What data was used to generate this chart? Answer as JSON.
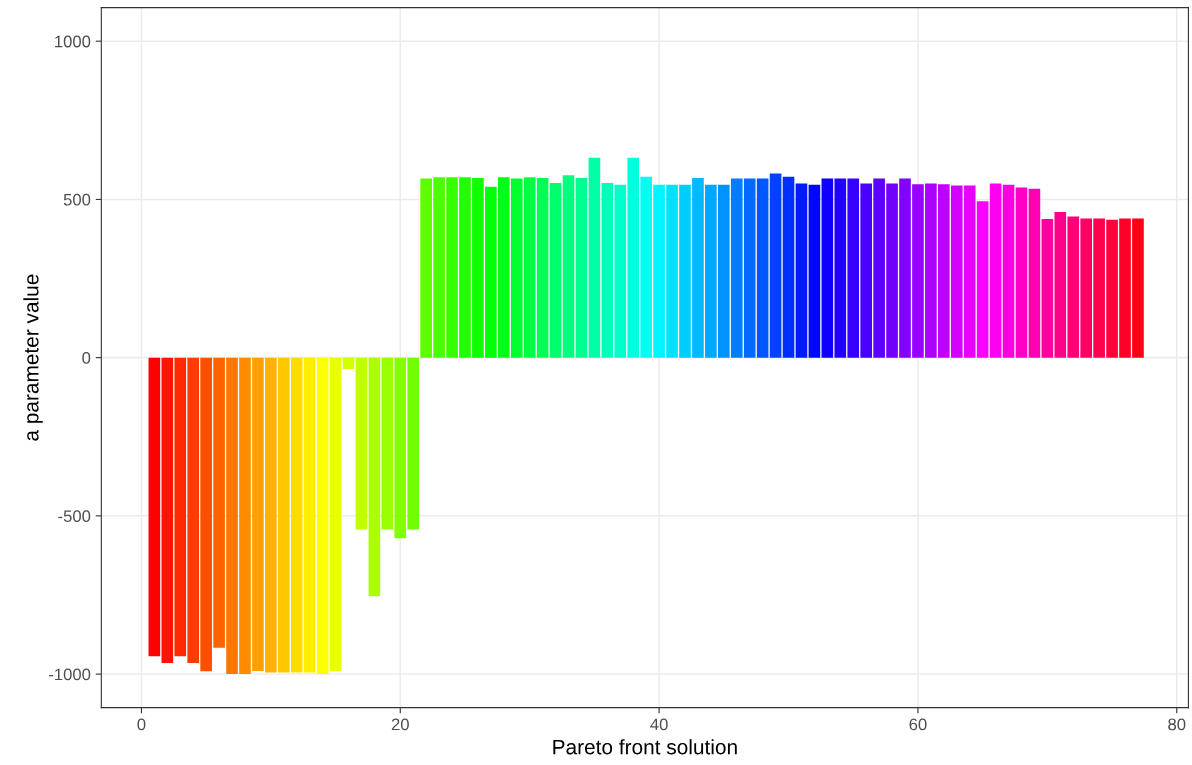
{
  "chart_data": {
    "type": "bar",
    "xlabel": "Pareto front solution",
    "ylabel": "a parameter value",
    "x": [
      1,
      2,
      3,
      4,
      5,
      6,
      7,
      8,
      9,
      10,
      11,
      12,
      13,
      14,
      15,
      16,
      17,
      18,
      19,
      20,
      21,
      22,
      23,
      24,
      25,
      26,
      27,
      28,
      29,
      30,
      31,
      32,
      33,
      34,
      35,
      36,
      37,
      38,
      39,
      40,
      41,
      42,
      43,
      44,
      45,
      46,
      47,
      48,
      49,
      50,
      51,
      52,
      53,
      54,
      55,
      56,
      57,
      58,
      59,
      60,
      61,
      62,
      63,
      64,
      65,
      66,
      67,
      68,
      69,
      70,
      71,
      72,
      73,
      74,
      75,
      76,
      77
    ],
    "values": [
      -944,
      -965,
      -944,
      -965,
      -991,
      -917,
      -1000,
      -1000,
      -990,
      -995,
      -995,
      -995,
      -995,
      -1000,
      -990,
      -36,
      -543,
      -754,
      -543,
      -571,
      -543,
      566,
      570,
      570,
      570,
      568,
      540,
      570,
      566,
      570,
      568,
      552,
      576,
      568,
      632,
      552,
      546,
      632,
      572,
      546,
      546,
      546,
      568,
      546,
      546,
      566,
      566,
      566,
      582,
      572,
      550,
      546,
      566,
      566,
      566,
      550,
      566,
      550,
      566,
      548,
      550,
      548,
      544,
      544,
      494,
      550,
      546,
      538,
      534,
      438,
      460,
      446,
      440,
      440,
      436,
      440,
      440
    ],
    "colors": [
      "#FF0000",
      "#FF1400",
      "#FF2800",
      "#FF3C00",
      "#FF4F00",
      "#FF6300",
      "#FF7700",
      "#FF8B00",
      "#FF9F00",
      "#FFB300",
      "#FFC700",
      "#FFDB00",
      "#FFEE00",
      "#FCFF00",
      "#E8FF00",
      "#D4FF00",
      "#C0FF00",
      "#ACFF00",
      "#98FF00",
      "#84FF00",
      "#71FF00",
      "#5DFF00",
      "#49FF00",
      "#35FF00",
      "#21FF00",
      "#0DFF00",
      "#00FF07",
      "#00FF1A",
      "#00FF2E",
      "#00FF42",
      "#00FF56",
      "#00FF6A",
      "#00FF7E",
      "#00FF92",
      "#00FFA6",
      "#00FFB9",
      "#00FFCD",
      "#00FFE1",
      "#00FFF5",
      "#00F5FF",
      "#00E1FF",
      "#00CDFF",
      "#00B9FF",
      "#00A6FF",
      "#0092FF",
      "#007EFF",
      "#006AFF",
      "#0056FF",
      "#0042FF",
      "#002EFF",
      "#001AFF",
      "#0007FF",
      "#0D00FF",
      "#2100FF",
      "#3500FF",
      "#4900FF",
      "#5D00FF",
      "#7100FF",
      "#8400FF",
      "#9800FF",
      "#AC00FF",
      "#C000FF",
      "#D400FF",
      "#E800FF",
      "#FC00FF",
      "#FF00EE",
      "#FF00DB",
      "#FF00C7",
      "#FF00B3",
      "#FF009F",
      "#FF008B",
      "#FF0077",
      "#FF0063",
      "#FF004F",
      "#FF003C",
      "#FF0028",
      "#FF0014"
    ],
    "xlim": [
      -3.1,
      80.9
    ],
    "xticks": [
      0,
      20,
      40,
      60,
      80
    ],
    "ylim": [
      -1106,
      1106
    ],
    "yticks": [
      -1000,
      -500,
      0,
      500,
      1000
    ],
    "grid": true
  }
}
